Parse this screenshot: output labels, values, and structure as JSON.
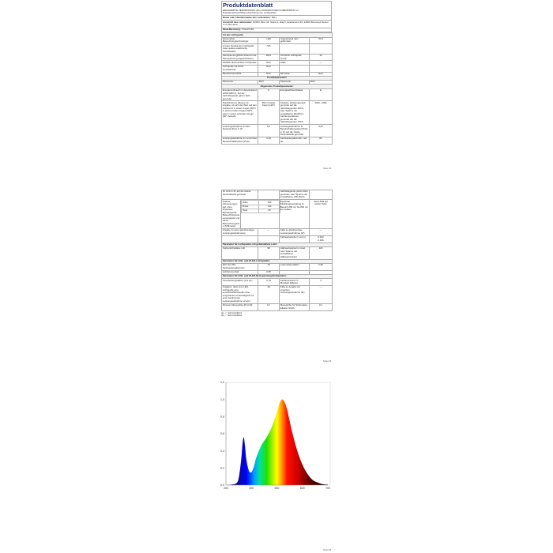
{
  "page1": {
    "title": "Produktdatenblatt",
    "regulation": "DELEGIERTE VERORDNUNG (EU) 2019/2015 DER KOMMISSION zur Energieverbrauchskennzeichnung von Lichtquellen",
    "supplier_name_label": "Name oder Handelsmarke des Lieferanten:",
    "supplier_name": "ZELL",
    "supplier_address_label": "Anschrift des Lieferanten:",
    "supplier_address": "NNNN, Bloc 42, Scara 1, Etaj 5, Apartament 39, 22800 Bucureşti Sector ul 3, Romania",
    "model_label": "Modellkennung:",
    "model": "TNL227-B3",
    "type_heading": "Art der Lichtquelle:",
    "type_rows": [
      [
        "Verwendete Beleuchtungstechnologie:",
        "LED",
        "Ungebündelt oder gebündelt:",
        "DLS"
      ],
      [
        "Art des Sockels der Lichtquelle (oder andere elektrische Schnittstelle)",
        "N/A",
        "",
        ""
      ],
      [
        "Netzspannung/Nicht direkt an die Netzspannung angeschlossen:",
        "MLS",
        "Vernetzte Lichtquelle (CLS):",
        "Ja"
      ],
      [
        "Farblich abstimmbare Lichtquelle:",
        "Nein",
        "Hülle:",
        "—"
      ],
      [
        "Lichtquelle mit hoher Leuchtdichte:",
        "Nein",
        "",
        ""
      ],
      [
        "Blendschutzschild:",
        "Nein",
        "Dimmbar:",
        "Nein"
      ]
    ],
    "params_heading": "Produktparameter",
    "params_header": [
      "Parameter",
      "Wert",
      "Parameter",
      "Wert"
    ],
    "general_heading": "Allgemeine Produktparameter:",
    "general_rows": [
      [
        "Energieverbrauch im Ein-Zustand (kWh/1000 h), auf die nächstliegende ganze Zahl gerundet",
        "6",
        "Energieeffizienzklasse",
        "E"
      ],
      [
        "Nutzlichtstrom (Φuse) mit Angabe, ob sich der Wert auf den Lichtstrom in einem Kegel (360°) in einem breiten Kegel (120°) oder in einem schmalen Kegel (90°) bezieht",
        "660 in breiter Kegel (120°)",
        "Ähnliche Farbtemperatur, gerundet auf die nächstliegenden 100 K, oder Spanne der einstellbaren ähnlichen Farbtemperaturen, gerundet auf die nächstliegenden 100 K",
        "3000...6000"
      ],
      [
        "Leistungsaufnahme im Ein-Zustand (Pon) in W",
        "6,0",
        "Leistungsaufnahme im Bereitschaftszustand (Psb) in W, auf die zweite Dezimalstelle gerundet",
        "0,00"
      ],
      [
        "Leistungsaufnahme im vernetzten Bereitschaftsbetrieb (Pnet)",
        "0,00",
        "Farbwiedergabeindex, auf die",
        "82"
      ]
    ],
    "footer": "Seite 1/3"
  },
  "page2": {
    "cont_row": [
      "für CLS in W, auf die zweite Dezimalstelle gerundet",
      "",
      "nächstliegende ganze Zahl gerundet, oder Spanne der einstellbaren CRI-Werte",
      ""
    ],
    "dims_label": "Äußere Abmessungen, ggf. ohne separates Betriebsgerät, Beleuchtungssteuerungsteile und Nicht-Beleuchtungsteile (Millimeter)",
    "dims": [
      [
        "Höhe",
        "100"
      ],
      [
        "Breite",
        "700"
      ],
      [
        "Tiefe",
        "25"
      ]
    ],
    "spectral_label": "Spektrale Strahlungsverteilung im Bereich 250 nm bis 800 nm bei Volllast",
    "spectral_value": "Siehe Bild auf letzter Seite",
    "rows_a": [
      [
        "Angabe zu einer gleichwertigen Leistungsaufnahme(a)",
        "—",
        "Falls ja, gleichwertige Leistungsaufnahme (W)",
        "—"
      ],
      [
        "",
        "",
        "Farbwertanteile (x und y)",
        "0,323\n0,336"
      ]
    ],
    "directional_heading": "Parameter für Lichtquellen mit gebündeltem Licht:",
    "directional_rows": [
      [
        "Spitzenlichtstärke (cd)",
        "90",
        "Halbwertswinkel in Grad oder Spanne der einstellbaren Halbwertswinkel",
        "120"
      ]
    ],
    "led_heading": "Parameter für LED- und OLED-Lichtquellen:",
    "led_rows": [
      [
        "Wert des R9-Farbwiedergabeindex",
        "78",
        "Lebensdauerfaktor",
        "0,80"
      ],
      [
        "Lichtstromerhalt",
        "0,85",
        "",
        ""
      ]
    ],
    "mains_heading": "Parameter für LED- und OLED-Netzspannungslichtquellen:",
    "mains_rows": [
      [
        "Verschiebungsfaktor (cos φ1)",
        "0,79",
        "Farbkonsistenz in McAdam-Ellipsen",
        "3"
      ],
      [
        "Angaben, dass eine LED-Lichtquelle eine Leuchtstofflichtquelle ohne eingebautes Vorschaltgerät mit einer bestimmten Leistungsaufnahme ersetzt.",
        "-(b)",
        "Falls ja, Angabe zur ersetzten Leistungsaufnahme (W)",
        "—"
      ],
      [
        "Flimmer-Messgröße (Pst LM)",
        "0,1",
        "Messgröße für Stroboskop-Effekte (SVM)",
        "0,1"
      ]
    ],
    "footnotes": [
      "(a) „-\": nicht zutreffend;",
      "(b) „-\": nicht zutreffend;"
    ],
    "footer": "Seite 2/3"
  },
  "page3": {
    "footer": "Seite 3/3"
  },
  "chart_data": {
    "type": "area",
    "title": "",
    "xlabel": "",
    "ylabel": "",
    "xlim": [
      300,
      700
    ],
    "ylim": [
      0,
      1.2
    ],
    "xticks": [
      300,
      400,
      500,
      600,
      700
    ],
    "yticks": [
      "0,0",
      "0,2",
      "0,4",
      "0,6",
      "0,8",
      "1,0",
      "1,2"
    ],
    "yticks_values": [
      0,
      0.2,
      0.4,
      0.6,
      0.8,
      1.0,
      1.2
    ],
    "fill": "spectral color gradient",
    "grid": false,
    "x": [
      300,
      320,
      340,
      350,
      360,
      365,
      370,
      375,
      380,
      390,
      400,
      410,
      420,
      440,
      460,
      480,
      500,
      510,
      520,
      530,
      540,
      560,
      580,
      600,
      620,
      640,
      660,
      680,
      700
    ],
    "y": [
      0.0,
      0.005,
      0.02,
      0.08,
      0.3,
      0.48,
      0.56,
      0.45,
      0.3,
      0.17,
      0.15,
      0.22,
      0.33,
      0.47,
      0.56,
      0.68,
      0.85,
      0.95,
      1.0,
      0.97,
      0.88,
      0.62,
      0.4,
      0.24,
      0.13,
      0.06,
      0.03,
      0.01,
      0.005
    ]
  }
}
